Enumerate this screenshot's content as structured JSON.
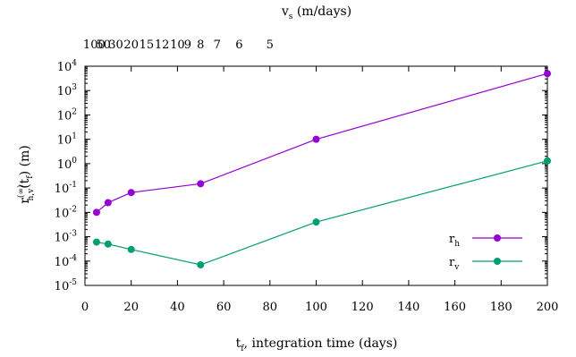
{
  "chart_data": {
    "type": "line",
    "x_axis": {
      "label": "t",
      "label_subscript": "f",
      "label_rest": ", integration time  (days)",
      "range": [
        0,
        200
      ],
      "ticks": [
        "0",
        "20",
        "40",
        "60",
        "80",
        "100",
        "120",
        "140",
        "160",
        "180",
        "200"
      ]
    },
    "top_axis": {
      "label": "v",
      "label_subscript": "s",
      "label_rest": "  (m/days)",
      "ticks": [
        {
          "t": 4,
          "text": "100"
        },
        {
          "t": 8,
          "text": "50"
        },
        {
          "t": 13.333,
          "text": "30"
        },
        {
          "t": 20,
          "text": "20"
        },
        {
          "t": 26.667,
          "text": "15"
        },
        {
          "t": 33.333,
          "text": "12"
        },
        {
          "t": 40,
          "text": "10"
        },
        {
          "t": 44.444,
          "text": "9"
        },
        {
          "t": 50,
          "text": "8"
        },
        {
          "t": 57.143,
          "text": "7"
        },
        {
          "t": 66.667,
          "text": "6"
        },
        {
          "t": 80,
          "text": "5"
        }
      ]
    },
    "y_axis": {
      "label": "r",
      "label_superscript": "(∞)",
      "label_subscript": "h,v",
      "label_paren": "(t",
      "label_paren_sub": "f",
      "label_rest": ")  (m)",
      "scale": "log",
      "range_exp": [
        -5,
        4
      ],
      "tick_base": "10",
      "tick_exponents": [
        "-5",
        "-4",
        "-3",
        "-2",
        "-1",
        "0",
        "1",
        "2",
        "3",
        "4"
      ]
    },
    "series": [
      {
        "name": "r",
        "name_subscript": "h",
        "color": "#9400d3",
        "x": [
          5,
          10,
          20,
          50,
          100,
          200
        ],
        "y": [
          0.01,
          0.025,
          0.065,
          0.15,
          10,
          5000
        ]
      },
      {
        "name": "r",
        "name_subscript": "v",
        "color": "#009e73",
        "x": [
          5,
          10,
          20,
          50,
          100,
          200
        ],
        "y": [
          0.0006,
          0.0005,
          0.0003,
          7e-05,
          0.004,
          1.3
        ]
      }
    ],
    "grid": false,
    "legend_position": "bottom-right"
  }
}
